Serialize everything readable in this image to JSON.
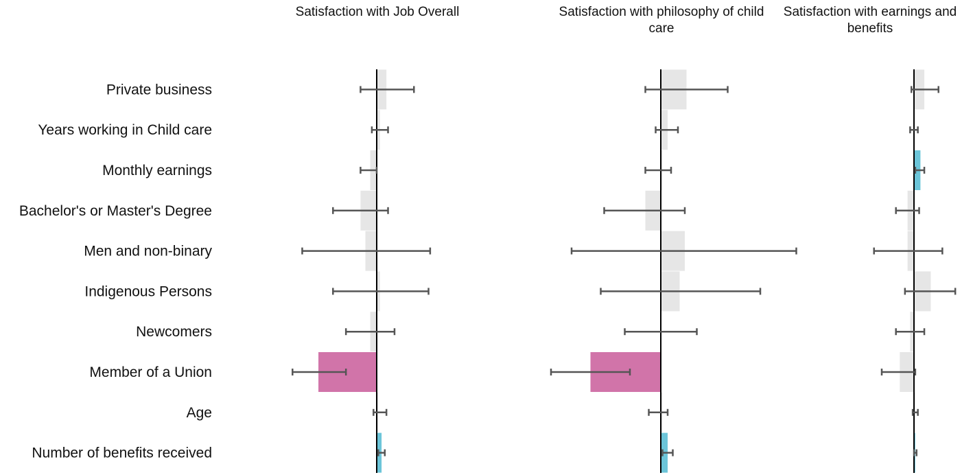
{
  "chart_data": [
    {
      "type": "bar",
      "orientation": "horizontal",
      "title": "Satisfaction with Job Overall",
      "categories": [
        "Private business",
        "Years working in Child care",
        "Monthly earnings",
        "Bachelor's or Master's Degree",
        "Men and non-binary",
        "Indigenous Persons",
        "Newcomers",
        "Member of a Union",
        "Age",
        "Number of benefits received"
      ],
      "values": [
        0.06,
        0.02,
        -0.04,
        -0.1,
        -0.07,
        0.02,
        -0.04,
        -0.36,
        0.01,
        0.03
      ],
      "ci_low": [
        -0.1,
        -0.03,
        -0.1,
        -0.27,
        -0.46,
        -0.27,
        -0.19,
        -0.52,
        -0.02,
        0.01
      ],
      "ci_high": [
        0.23,
        0.07,
        0.0,
        0.07,
        0.33,
        0.32,
        0.11,
        -0.19,
        0.06,
        0.05
      ],
      "significance": [
        "ns",
        "ns",
        "ns",
        "ns",
        "ns",
        "ns",
        "ns",
        "negative",
        "ns",
        "positive"
      ]
    },
    {
      "type": "bar",
      "orientation": "horizontal",
      "title": "Satisfaction with philosophy of child care",
      "categories": [
        "Private business",
        "Years working in Child care",
        "Monthly earnings",
        "Bachelor's or Master's Degree",
        "Men and non-binary",
        "Indigenous Persons",
        "Newcomers",
        "Member of a Union",
        "Age",
        "Number of benefits received"
      ],
      "values": [
        0.15,
        0.04,
        0.01,
        -0.09,
        0.14,
        0.11,
        0.0,
        -0.41,
        0.01,
        0.04
      ],
      "ci_low": [
        -0.09,
        -0.03,
        -0.09,
        -0.33,
        -0.52,
        -0.35,
        -0.21,
        -0.64,
        -0.07,
        0.01
      ],
      "ci_high": [
        0.39,
        0.1,
        0.06,
        0.14,
        0.79,
        0.58,
        0.21,
        -0.18,
        0.04,
        0.07
      ],
      "significance": [
        "ns",
        "ns",
        "ns",
        "ns",
        "ns",
        "ns",
        "ns",
        "negative",
        "ns",
        "positive"
      ]
    },
    {
      "type": "bar",
      "orientation": "horizontal",
      "title": "Satisfaction with earnings and benefits",
      "categories": [
        "Private business",
        "Years working in Child care",
        "Monthly earnings",
        "Bachelor's or Master's Degree",
        "Men and non-binary",
        "Indigenous Persons",
        "Newcomers",
        "Member of a Union",
        "Age",
        "Number of benefits received"
      ],
      "values": [
        0.08,
        0.0,
        0.05,
        -0.05,
        -0.05,
        0.13,
        -0.03,
        -0.11,
        0.01,
        0.01
      ],
      "ci_low": [
        -0.02,
        -0.03,
        0.01,
        -0.14,
        -0.31,
        -0.07,
        -0.14,
        -0.25,
        -0.01,
        0.0
      ],
      "ci_high": [
        0.19,
        0.03,
        0.08,
        0.04,
        0.22,
        0.32,
        0.08,
        0.01,
        0.03,
        0.02
      ],
      "significance": [
        "ns",
        "ns",
        "positive",
        "ns",
        "ns",
        "ns",
        "ns",
        "ns",
        "ns",
        "positive"
      ]
    }
  ],
  "colors": {
    "positive": "#6cc5d9",
    "negative": "#d174a9",
    "ns": "#e6e6e6",
    "errorbar": "#555555",
    "zero_line": "#000000"
  }
}
